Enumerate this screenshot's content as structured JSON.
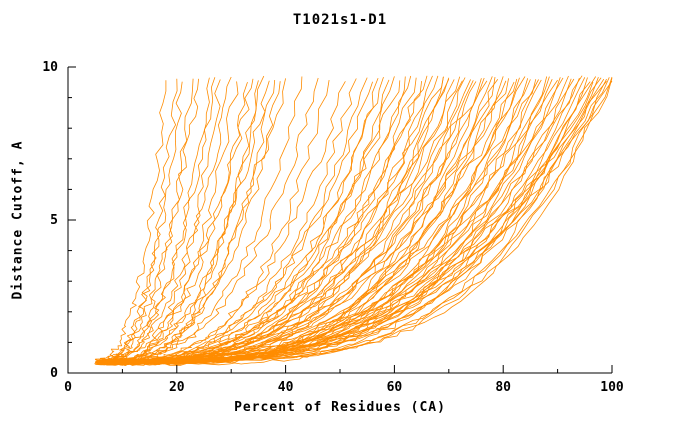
{
  "chart_data": {
    "type": "line",
    "title": "T1021s1-D1",
    "xlabel": "Percent of Residues (CA)",
    "ylabel": "Distance Cutoff, A",
    "xlim": [
      0,
      100
    ],
    "ylim": [
      0,
      10
    ],
    "x_ticks": [
      0,
      20,
      40,
      60,
      80,
      100
    ],
    "y_ticks": [
      0,
      5,
      10
    ],
    "x_minor_step": 10,
    "y_minor_step": 1,
    "line_color": "#ff8c00",
    "axis_color": "#000000",
    "grid": false,
    "legend": null,
    "curves": [
      [
        5.0,
        18,
        2.6
      ],
      [
        5.5,
        20,
        2.8
      ],
      [
        6.0,
        21,
        2.4
      ],
      [
        5.0,
        23,
        3.0
      ],
      [
        6.5,
        24,
        2.2
      ],
      [
        5.2,
        26,
        2.7
      ],
      [
        6.0,
        27,
        2.5
      ],
      [
        5.8,
        28,
        3.1
      ],
      [
        6.2,
        30,
        2.3
      ],
      [
        5.4,
        31,
        2.9
      ],
      [
        6.8,
        33,
        2.6
      ],
      [
        5.1,
        34,
        2.4
      ],
      [
        6.3,
        35,
        3.2
      ],
      [
        5.6,
        36,
        2.8
      ],
      [
        6.1,
        37,
        2.5
      ],
      [
        5.9,
        38,
        3.0
      ],
      [
        6.4,
        39,
        2.7
      ],
      [
        5.3,
        40,
        2.9
      ],
      [
        5.7,
        43,
        3.0
      ],
      [
        6.0,
        46,
        2.8
      ],
      [
        5.5,
        48,
        3.3
      ],
      [
        6.2,
        51,
        2.9
      ],
      [
        5.8,
        53,
        3.1
      ],
      [
        5.0,
        55,
        3.2
      ],
      [
        5.5,
        56,
        2.9
      ],
      [
        6.0,
        57,
        3.4
      ],
      [
        6.5,
        58,
        3.0
      ],
      [
        5.2,
        59,
        3.6
      ],
      [
        5.8,
        60,
        3.1
      ],
      [
        6.1,
        61,
        2.8
      ],
      [
        5.4,
        62,
        3.3
      ],
      [
        6.6,
        63,
        3.0
      ],
      [
        5.1,
        64,
        3.5
      ],
      [
        6.3,
        65,
        3.2
      ],
      [
        5.7,
        66,
        2.9
      ],
      [
        6.0,
        67,
        3.4
      ],
      [
        5.5,
        68,
        3.1
      ],
      [
        6.2,
        69,
        3.6
      ],
      [
        5.9,
        70,
        3.0
      ],
      [
        5.3,
        70,
        3.3
      ],
      [
        6.4,
        69,
        2.7
      ],
      [
        5.0,
        71,
        3.4
      ],
      [
        6.1,
        72,
        2.9
      ],
      [
        5.4,
        72.5,
        3.8
      ],
      [
        6.5,
        73,
        3.1
      ],
      [
        5.2,
        74,
        3.5
      ],
      [
        5.8,
        74.5,
        4.0
      ],
      [
        6.2,
        75,
        2.8
      ],
      [
        5.5,
        76,
        3.3
      ],
      [
        6.0,
        76.5,
        3.9
      ],
      [
        5.1,
        77,
        3.0
      ],
      [
        6.4,
        78,
        3.6
      ],
      [
        5.6,
        78.5,
        4.1
      ],
      [
        5.9,
        79,
        3.2
      ],
      [
        6.1,
        80,
        3.7
      ],
      [
        5.3,
        80.5,
        2.9
      ],
      [
        6.3,
        81,
        3.4
      ],
      [
        5.7,
        82,
        4.2
      ],
      [
        6.0,
        82.5,
        3.1
      ],
      [
        5.2,
        83,
        3.8
      ],
      [
        6.5,
        84,
        3.3
      ],
      [
        5.5,
        84.5,
        4.0
      ],
      [
        5.8,
        85,
        3.5
      ],
      [
        6.2,
        86,
        3.0
      ],
      [
        5.4,
        86.5,
        3.9
      ],
      [
        6.0,
        87,
        3.4
      ],
      [
        5.6,
        88,
        4.3
      ],
      [
        6.3,
        88.5,
        3.2
      ],
      [
        5.1,
        89,
        3.7
      ],
      [
        5.9,
        90,
        3.3
      ],
      [
        6.1,
        90.5,
        4.0
      ],
      [
        5.3,
        91,
        3.5
      ],
      [
        6.4,
        92,
        3.0
      ],
      [
        5.7,
        92.5,
        3.8
      ],
      [
        6.0,
        93,
        3.4
      ],
      [
        5.5,
        94,
        4.2
      ],
      [
        6.2,
        94.5,
        3.1
      ],
      [
        5.8,
        95,
        3.6
      ],
      [
        5.2,
        95.5,
        4.0
      ],
      [
        6.1,
        96,
        3.3
      ],
      [
        5.6,
        96.5,
        3.9
      ],
      [
        5.9,
        97,
        3.5
      ],
      [
        6.3,
        97.5,
        4.1
      ],
      [
        5.4,
        98,
        3.2
      ],
      [
        6.0,
        98.5,
        3.7
      ],
      [
        5.7,
        99,
        4.3
      ],
      [
        5.3,
        99.5,
        3.4
      ],
      [
        6.2,
        100,
        3.9
      ],
      [
        5.8,
        100,
        3.1
      ],
      [
        5.5,
        100,
        4.4
      ],
      [
        6.0,
        99,
        2.8
      ]
    ]
  }
}
